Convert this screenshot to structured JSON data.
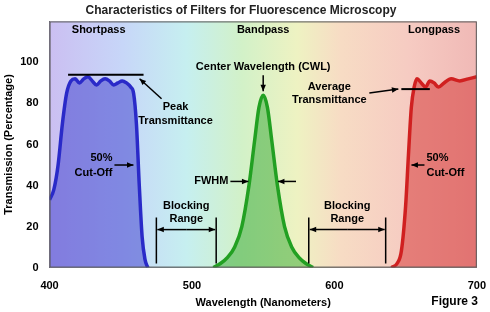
{
  "chart_data": {
    "type": "line",
    "title": "Characteristics of Filters for Fluorescence Microscopy",
    "x_label": "Wavelength (Nanometers)",
    "y_label": "Transmission (Percentage)",
    "xlim": [
      400,
      700
    ],
    "xticks": [
      400,
      500,
      600,
      700
    ],
    "ylim": [
      0,
      120
    ],
    "yticks": [
      0,
      20,
      40,
      60,
      80,
      100
    ],
    "grid": false,
    "series": [
      {
        "name": "Shortpass",
        "color": "#2a2ac8",
        "x": [
          400,
          403,
          406,
          409,
          412,
          415,
          418,
          421,
          424,
          427,
          430,
          433,
          436,
          439,
          442,
          445,
          448,
          451,
          454,
          457,
          459,
          461,
          463,
          465,
          467,
          469
        ],
        "values": [
          33,
          38,
          50,
          70,
          85,
          91,
          92,
          90,
          92,
          93,
          91,
          89,
          91,
          92,
          91,
          89,
          90,
          91,
          90,
          88,
          85,
          70,
          40,
          15,
          4,
          0
        ]
      },
      {
        "name": "Bandpass",
        "color": "#22a022",
        "x": [
          515,
          520,
          525,
          530,
          535,
          540,
          544,
          547,
          550,
          553,
          556,
          560,
          565,
          570,
          575,
          580,
          585
        ],
        "values": [
          0,
          2,
          5,
          10,
          20,
          40,
          62,
          78,
          84,
          78,
          62,
          40,
          20,
          10,
          5,
          2,
          0
        ]
      },
      {
        "name": "Longpass",
        "color": "#d02020",
        "x": [
          640,
          644,
          647,
          650,
          652,
          654,
          656,
          658,
          661,
          664,
          667,
          670,
          673,
          677,
          682,
          688,
          694,
          700
        ],
        "values": [
          0,
          2,
          8,
          30,
          55,
          78,
          88,
          92,
          90,
          88,
          91,
          90,
          88,
          90,
          92,
          91,
          92,
          93
        ]
      }
    ],
    "peak_transmittance": {
      "label": "Peak Transmittance",
      "value": 94,
      "xrange": [
        413,
        466
      ]
    },
    "center_wavelength": {
      "label": "Center Wavelength (CWL)",
      "value": 550
    },
    "average_transmittance": {
      "label": "Average Transmittance",
      "value": 87,
      "xrange": [
        647,
        667
      ]
    },
    "fwhm": {
      "label": "FWHM",
      "range": [
        541,
        559
      ],
      "level": 42
    },
    "cut_off": {
      "label": "50% Cut-Off",
      "level": 50,
      "at": [
        461,
        652
      ]
    },
    "blocking_ranges": {
      "label": "Blocking Range",
      "ranges": [
        [
          475,
          517
        ],
        [
          582,
          636
        ]
      ]
    },
    "figure_label": "Figure 3"
  }
}
